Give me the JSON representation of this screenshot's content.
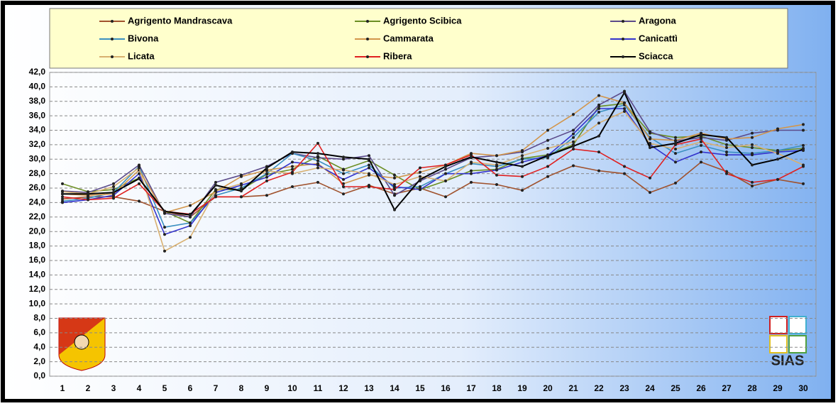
{
  "chart_data": {
    "type": "line",
    "categories": [
      "1",
      "2",
      "3",
      "4",
      "5",
      "6",
      "7",
      "8",
      "9",
      "10",
      "11",
      "12",
      "13",
      "14",
      "15",
      "16",
      "17",
      "18",
      "19",
      "20",
      "21",
      "22",
      "23",
      "24",
      "25",
      "26",
      "27",
      "28",
      "29",
      "30"
    ],
    "series": [
      {
        "name": "Agrigento Mandrascava",
        "color": "#a0522d",
        "values": [
          24.5,
          24.8,
          24.8,
          24.2,
          22.8,
          22.0,
          24.8,
          24.8,
          25.0,
          26.2,
          26.8,
          25.2,
          26.4,
          25.2,
          26.0,
          24.8,
          26.8,
          26.5,
          25.7,
          27.6,
          29.1,
          28.4,
          28.0,
          25.4,
          26.7,
          29.6,
          28.3,
          26.3,
          27.2,
          26.6
        ]
      },
      {
        "name": "Agrigento Scibica",
        "color": "#6b8e23",
        "values": [
          26.6,
          25.5,
          25.8,
          27.4,
          22.8,
          21.2,
          25.8,
          25.8,
          27.9,
          28.6,
          30.4,
          28.6,
          29.8,
          27.8,
          25.8,
          27.0,
          28.4,
          28.6,
          30.1,
          30.6,
          32.0,
          37.3,
          37.7,
          33.6,
          33.0,
          33.2,
          32.0,
          31.6,
          31.2,
          31.5
        ]
      },
      {
        "name": "Aragona",
        "color": "#5b4a8a",
        "values": [
          25.6,
          25.4,
          26.6,
          29.2,
          22.5,
          22.0,
          26.8,
          27.8,
          29.0,
          30.8,
          30.2,
          30.0,
          30.5,
          25.0,
          27.0,
          28.6,
          30.2,
          30.5,
          31.0,
          32.6,
          34.0,
          37.5,
          39.4,
          33.8,
          32.5,
          33.0,
          32.6,
          33.6,
          34.0,
          34.0
        ]
      },
      {
        "name": "Bivona",
        "color": "#3a8fc0",
        "values": [
          24.2,
          24.6,
          25.4,
          29.0,
          20.6,
          21.2,
          25.0,
          26.0,
          28.0,
          30.8,
          29.8,
          28.0,
          29.2,
          26.0,
          26.2,
          28.0,
          29.4,
          29.0,
          30.0,
          30.2,
          33.0,
          36.5,
          37.5,
          33.0,
          30.8,
          31.9,
          31.0,
          30.8,
          31.2,
          31.9
        ]
      },
      {
        "name": "Cammarata",
        "color": "#d2954a",
        "values": [
          25.2,
          25.0,
          25.2,
          28.5,
          22.6,
          23.6,
          25.5,
          27.6,
          28.5,
          29.0,
          29.4,
          26.6,
          27.8,
          27.4,
          28.2,
          29.2,
          30.8,
          30.5,
          31.2,
          34.0,
          36.2,
          38.8,
          37.8,
          32.8,
          32.6,
          33.6,
          32.8,
          33.0,
          34.2,
          34.8
        ]
      },
      {
        "name": "Canicattì",
        "color": "#3333cc",
        "values": [
          24.0,
          24.4,
          25.0,
          28.0,
          19.6,
          20.8,
          25.4,
          26.4,
          27.5,
          29.6,
          29.2,
          27.2,
          28.8,
          26.2,
          25.8,
          28.0,
          28.0,
          28.5,
          29.6,
          30.5,
          33.5,
          37.0,
          37.0,
          32.0,
          29.6,
          31.0,
          30.6,
          30.6,
          31.0,
          31.2
        ]
      },
      {
        "name": "Licata",
        "color": "#d8b070",
        "values": [
          25.5,
          25.2,
          26.2,
          28.8,
          17.3,
          19.2,
          25.6,
          26.6,
          28.4,
          28.0,
          28.8,
          28.5,
          28.0,
          26.5,
          27.6,
          27.0,
          29.6,
          29.2,
          30.5,
          31.5,
          32.4,
          35.0,
          36.6,
          32.2,
          31.4,
          32.4,
          31.6,
          32.0,
          30.8,
          29.2
        ]
      },
      {
        "name": "Ribera",
        "color": "#e02020",
        "values": [
          24.8,
          24.4,
          24.6,
          26.6,
          22.8,
          22.4,
          24.8,
          24.8,
          27.0,
          28.2,
          32.2,
          26.2,
          26.2,
          25.8,
          28.8,
          29.2,
          30.6,
          27.8,
          27.6,
          29.0,
          31.4,
          31.0,
          29.0,
          27.4,
          32.0,
          32.8,
          28.0,
          26.8,
          27.2,
          29.0
        ]
      },
      {
        "name": "Sciacca",
        "color": "#000000",
        "values": [
          25.2,
          25.2,
          25.4,
          27.3,
          22.8,
          22.3,
          26.4,
          25.6,
          28.8,
          31.0,
          30.8,
          30.3,
          30.0,
          23.0,
          27.2,
          29.0,
          30.3,
          29.6,
          29.0,
          30.5,
          31.8,
          33.2,
          39.2,
          31.6,
          32.2,
          33.4,
          33.0,
          29.2,
          30.0,
          31.4
        ]
      }
    ],
    "ylim": [
      0,
      42
    ],
    "yticks": [
      {
        "value": 0,
        "label": "0,0"
      },
      {
        "value": 2,
        "label": "2,0"
      },
      {
        "value": 4,
        "label": "4,0"
      },
      {
        "value": 6,
        "label": "6,0"
      },
      {
        "value": 8,
        "label": "8,0"
      },
      {
        "value": 10,
        "label": "10,0"
      },
      {
        "value": 12,
        "label": "12,0"
      },
      {
        "value": 14,
        "label": "14,0"
      },
      {
        "value": 16,
        "label": "16,0"
      },
      {
        "value": 18,
        "label": "18,0"
      },
      {
        "value": 20,
        "label": "20,0"
      },
      {
        "value": 22,
        "label": "22,0"
      },
      {
        "value": 24,
        "label": "24,0"
      },
      {
        "value": 26,
        "label": "26,0"
      },
      {
        "value": 28,
        "label": "28,0"
      },
      {
        "value": 30,
        "label": "30,0"
      },
      {
        "value": 32,
        "label": "32,0"
      },
      {
        "value": 34,
        "label": "34,0"
      },
      {
        "value": 36,
        "label": "36,0"
      },
      {
        "value": 38,
        "label": "38,0"
      },
      {
        "value": 40,
        "label": "40,0"
      },
      {
        "value": 42,
        "label": "42,0"
      }
    ],
    "grid": true,
    "legend": "top",
    "annotations": [
      "SIAS"
    ]
  }
}
